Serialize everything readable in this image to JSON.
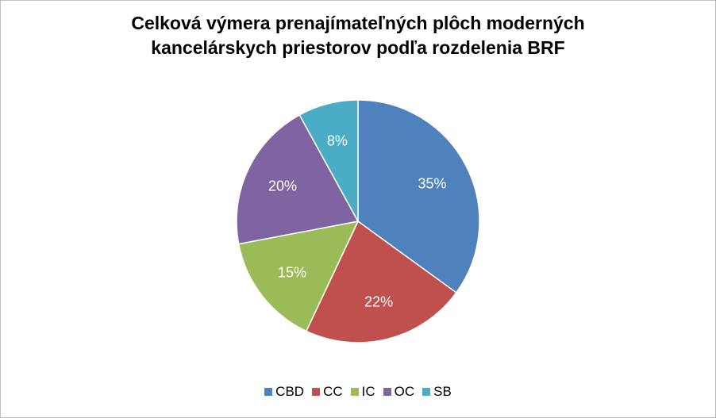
{
  "chart_data": {
    "type": "pie",
    "title_lines": [
      "Celková výmera prenajímateľných plôch moderných",
      "kancelárskych priestorov podľa rozdelenia BRF"
    ],
    "categories": [
      "CBD",
      "CC",
      "IC",
      "OC",
      "SB"
    ],
    "values": [
      35,
      22,
      15,
      20,
      8
    ],
    "labels": [
      "35%",
      "22%",
      "15%",
      "20%",
      "8%"
    ],
    "colors": [
      "#4F81BD",
      "#C0504D",
      "#9BBB59",
      "#8064A2",
      "#4BACC6"
    ],
    "legend_position": "bottom",
    "start": "12 o'clock, clockwise"
  }
}
